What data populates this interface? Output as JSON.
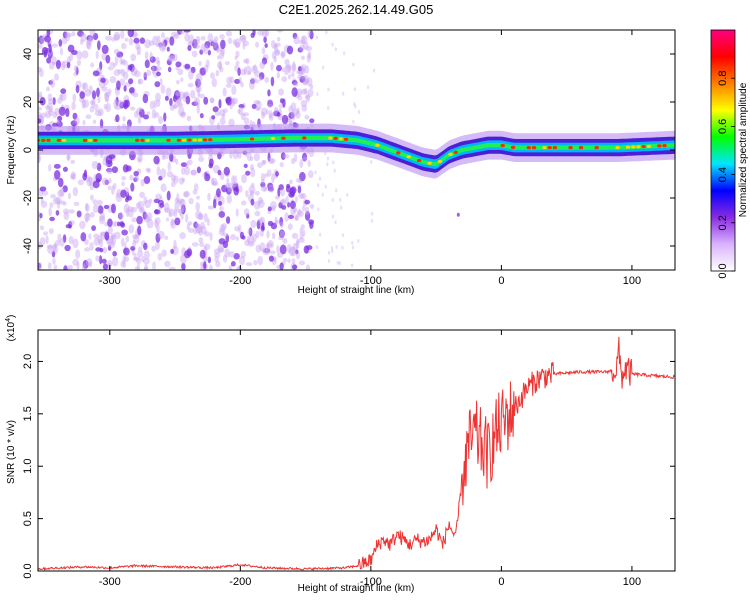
{
  "figure_title": "C2E1.2025.262.14.49.G05",
  "chart_data": [
    {
      "type": "heatmap",
      "title": "C2E1.2025.262.14.49.G05",
      "xlabel": "Height of straight line (km)",
      "ylabel": "Frequency (Hz)",
      "xlim": [
        -355,
        133
      ],
      "ylim": [
        -50,
        50
      ],
      "xticks": [
        -300,
        -200,
        -100,
        0,
        100
      ],
      "yticks": [
        -40,
        -20,
        0,
        20,
        40
      ],
      "grid": false,
      "colorbar": {
        "label": "Normalized spectral amplitude",
        "range": [
          0,
          1
        ],
        "ticks": [
          "0.0",
          "0.2",
          "0.4",
          "0.6",
          "0.8"
        ],
        "colormap": [
          "#ffffff",
          "#d9b3ff",
          "#8a2be2",
          "#0000ff",
          "#00e5ff",
          "#00ff00",
          "#ffff00",
          "#ff7f00",
          "#ff0000",
          "#ff0080"
        ]
      },
      "ridge": {
        "x": [
          -355,
          -300,
          -250,
          -200,
          -160,
          -130,
          -110,
          -95,
          -80,
          -70,
          -60,
          -50,
          -45,
          -40,
          -30,
          -20,
          -10,
          0,
          10,
          30,
          60,
          90,
          133
        ],
        "y": [
          4,
          4,
          4,
          4.5,
          5,
          5,
          4,
          2,
          -1,
          -3,
          -5,
          -6,
          -4,
          -2,
          0,
          1,
          2,
          2,
          1,
          1,
          1,
          1,
          2
        ]
      },
      "tail_point": {
        "x": -33,
        "y": -27
      },
      "noise_region_x": [
        -355,
        -145
      ]
    },
    {
      "type": "line",
      "title": "",
      "xlabel": "Height of straight line (km)",
      "ylabel": "SNR (10 * v/v)",
      "y_multiplier": "(x10^4)",
      "y_multiplier_base": "(x10",
      "y_multiplier_exp": "4",
      "y_multiplier_close": ")",
      "xlim": [
        -355,
        133
      ],
      "ylim": [
        0,
        2.3
      ],
      "xticks": [
        -300,
        -200,
        -100,
        0,
        100
      ],
      "yticks": [
        "0.0",
        "0.5",
        "1.0",
        "1.5",
        "2.0"
      ],
      "series": [
        {
          "color": "#ee3333",
          "x": [
            -355,
            -320,
            -300,
            -280,
            -250,
            -220,
            -200,
            -180,
            -150,
            -120,
            -110,
            -100,
            -95,
            -90,
            -85,
            -80,
            -75,
            -70,
            -65,
            -60,
            -55,
            -50,
            -45,
            -40,
            -35,
            -30,
            -25,
            -20,
            -15,
            -10,
            -5,
            0,
            10,
            20,
            30,
            40,
            60,
            80,
            88,
            90,
            92,
            95,
            100,
            110,
            120,
            133
          ],
          "y": [
            0.02,
            0.04,
            0.03,
            0.05,
            0.04,
            0.03,
            0.06,
            0.03,
            0.02,
            0.03,
            0.05,
            0.1,
            0.25,
            0.3,
            0.25,
            0.35,
            0.3,
            0.25,
            0.3,
            0.28,
            0.3,
            0.4,
            0.25,
            0.45,
            0.3,
            0.9,
            1.2,
            1.3,
            1.2,
            1.1,
            1.3,
            1.4,
            1.55,
            1.75,
            1.85,
            1.88,
            1.9,
            1.9,
            1.92,
            2.1,
            1.85,
            1.93,
            1.88,
            1.87,
            1.86,
            1.85
          ]
        }
      ]
    }
  ]
}
